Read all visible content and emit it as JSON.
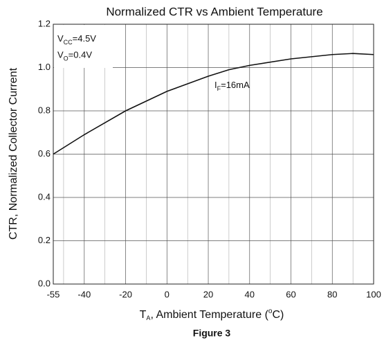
{
  "chart_data": {
    "type": "line",
    "title": "Normalized CTR vs Ambient Temperature",
    "y_label": "CTR, Normalized Collector Current",
    "x_label_parts": [
      {
        "text": "T"
      },
      {
        "text": "A",
        "sub": true
      },
      {
        "text": ", Ambient Temperature ("
      },
      {
        "text": "o",
        "sup": true
      },
      {
        "text": "C)"
      }
    ],
    "caption": "Figure 3",
    "annotations": [
      {
        "x": -53,
        "y": 1.13,
        "parts": [
          {
            "text": "V"
          },
          {
            "text": "CC",
            "sub": true
          },
          {
            "text": "=4.5V"
          }
        ]
      },
      {
        "x": -53,
        "y": 1.055,
        "parts": [
          {
            "text": "V"
          },
          {
            "text": "O",
            "sub": true
          },
          {
            "text": "=0.4V"
          }
        ]
      },
      {
        "x": 23,
        "y": 0.915,
        "parts": [
          {
            "text": "I"
          },
          {
            "text": "F",
            "sub": true
          },
          {
            "text": "=16mA"
          }
        ]
      }
    ],
    "x": [
      -55,
      -40,
      -20,
      0,
      20,
      30,
      40,
      60,
      80,
      90,
      100
    ],
    "series": [
      {
        "name": "IF=16mA",
        "color": "#111111",
        "values": [
          0.6,
          0.69,
          0.8,
          0.89,
          0.96,
          0.99,
          1.01,
          1.04,
          1.06,
          1.065,
          1.06
        ]
      }
    ],
    "xlim": [
      -55,
      100
    ],
    "xticks": [
      -55,
      -40,
      -20,
      0,
      20,
      40,
      60,
      80,
      100
    ],
    "xminorticks": [
      -50,
      -30,
      -10,
      10,
      30,
      50,
      70,
      90
    ],
    "ylim": [
      0,
      1.2
    ],
    "yticks": [
      {
        "value": 0,
        "label": "0.0"
      },
      0.2,
      0.4,
      0.6,
      0.8,
      {
        "value": 1,
        "label": "1.0"
      },
      1.2
    ],
    "grid": true
  }
}
